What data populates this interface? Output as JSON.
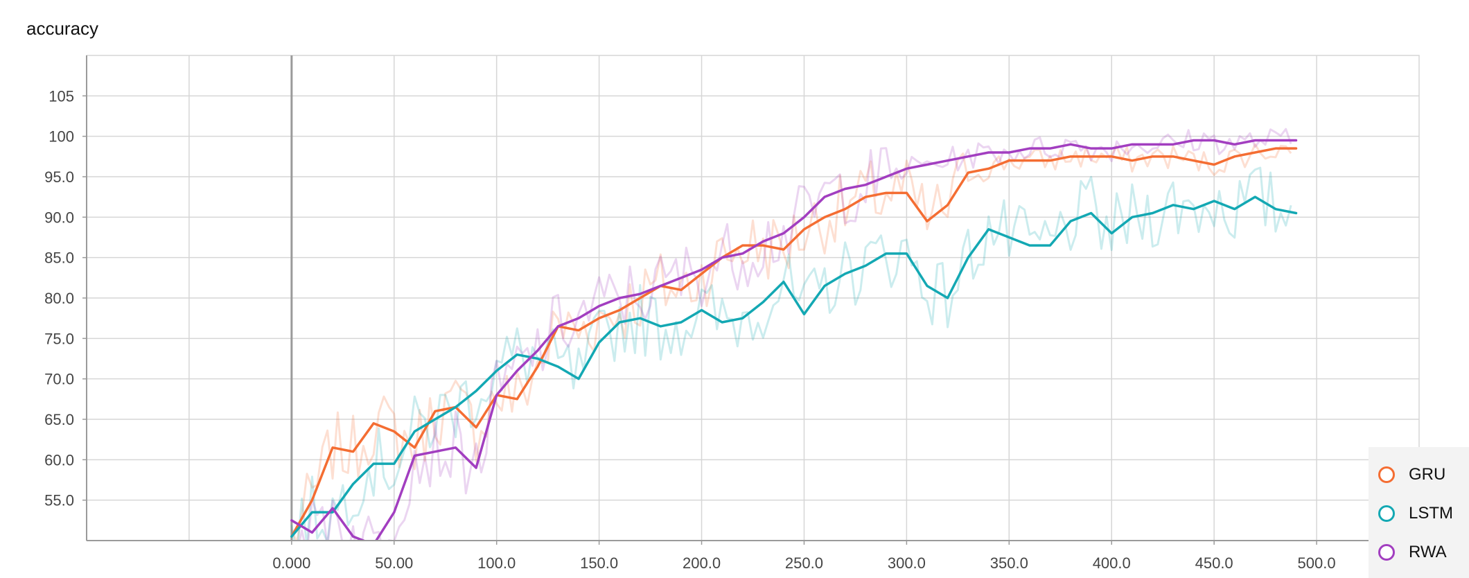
{
  "chart_data": {
    "type": "line",
    "title": "accuracy",
    "xlabel": "",
    "ylabel": "",
    "xlim": [
      -100,
      550
    ],
    "ylim": [
      50,
      110
    ],
    "x_ticks": [
      "0.000",
      "50.00",
      "100.0",
      "150.0",
      "200.0",
      "250.0",
      "300.0",
      "350.0",
      "400.0",
      "450.0",
      "500.0"
    ],
    "y_ticks": [
      "55.0",
      "60.0",
      "65.0",
      "70.0",
      "75.0",
      "80.0",
      "85.0",
      "90.0",
      "95.0",
      "100",
      "105"
    ],
    "grid": true,
    "legend_position": "bottom-right",
    "series": [
      {
        "name": "GRU",
        "color": "#f46d32",
        "x": [
          0,
          10,
          20,
          30,
          40,
          50,
          60,
          70,
          80,
          90,
          100,
          110,
          120,
          130,
          140,
          150,
          160,
          170,
          180,
          190,
          200,
          210,
          220,
          230,
          240,
          250,
          260,
          270,
          280,
          290,
          300,
          310,
          320,
          330,
          340,
          350,
          360,
          370,
          380,
          390,
          400,
          410,
          420,
          430,
          440,
          450,
          460,
          470,
          480,
          490
        ],
        "y": [
          50.5,
          55.0,
          61.5,
          61.0,
          64.5,
          63.5,
          61.5,
          66.0,
          66.5,
          64.0,
          68.0,
          67.5,
          71.5,
          76.5,
          76.0,
          77.5,
          78.5,
          80.0,
          81.5,
          81.0,
          83.0,
          85.0,
          86.5,
          86.5,
          86.0,
          88.5,
          90.0,
          91.0,
          92.5,
          93.0,
          93.0,
          89.5,
          91.5,
          95.5,
          96.0,
          97.0,
          97.0,
          97.0,
          97.5,
          97.5,
          97.5,
          97.0,
          97.5,
          97.5,
          97.0,
          96.5,
          97.5,
          98.0,
          98.5,
          98.5
        ]
      },
      {
        "name": "LSTM",
        "color": "#13a8b3",
        "x": [
          0,
          10,
          20,
          30,
          40,
          50,
          60,
          70,
          80,
          90,
          100,
          110,
          120,
          130,
          140,
          150,
          160,
          170,
          180,
          190,
          200,
          210,
          220,
          230,
          240,
          250,
          260,
          270,
          280,
          290,
          300,
          310,
          320,
          330,
          340,
          350,
          360,
          370,
          380,
          390,
          400,
          410,
          420,
          430,
          440,
          450,
          460,
          470,
          480,
          490
        ],
        "y": [
          50.5,
          53.5,
          53.5,
          57.0,
          59.5,
          59.5,
          63.5,
          65.0,
          66.5,
          68.5,
          71.0,
          73.0,
          72.5,
          71.5,
          70.0,
          74.5,
          77.0,
          77.5,
          76.5,
          77.0,
          78.5,
          77.0,
          77.5,
          79.5,
          82.0,
          78.0,
          81.5,
          83.0,
          84.0,
          85.5,
          85.5,
          81.5,
          80.0,
          85.0,
          88.5,
          87.5,
          86.5,
          86.5,
          89.5,
          90.5,
          88.0,
          90.0,
          90.5,
          91.5,
          91.0,
          92.0,
          91.0,
          92.5,
          91.0,
          90.5
        ]
      },
      {
        "name": "RWA",
        "color": "#a23ec0",
        "x": [
          0,
          10,
          20,
          30,
          40,
          50,
          60,
          70,
          80,
          90,
          100,
          110,
          120,
          130,
          140,
          150,
          160,
          170,
          180,
          190,
          200,
          210,
          220,
          230,
          240,
          250,
          260,
          270,
          280,
          290,
          300,
          310,
          320,
          330,
          340,
          350,
          360,
          370,
          380,
          390,
          400,
          410,
          420,
          430,
          440,
          450,
          460,
          470,
          480,
          490
        ],
        "y": [
          52.5,
          51.0,
          54.0,
          50.5,
          49.5,
          53.5,
          60.5,
          61.0,
          61.5,
          59.0,
          68.0,
          71.0,
          73.5,
          76.5,
          77.5,
          79.0,
          80.0,
          80.5,
          81.5,
          82.5,
          83.5,
          85.0,
          85.5,
          87.0,
          88.0,
          90.0,
          92.5,
          93.5,
          94.0,
          95.0,
          96.0,
          96.5,
          97.0,
          97.5,
          98.0,
          98.0,
          98.5,
          98.5,
          99.0,
          98.5,
          98.5,
          99.0,
          99.0,
          99.0,
          99.5,
          99.5,
          99.0,
          99.5,
          99.5,
          99.5
        ]
      }
    ]
  }
}
